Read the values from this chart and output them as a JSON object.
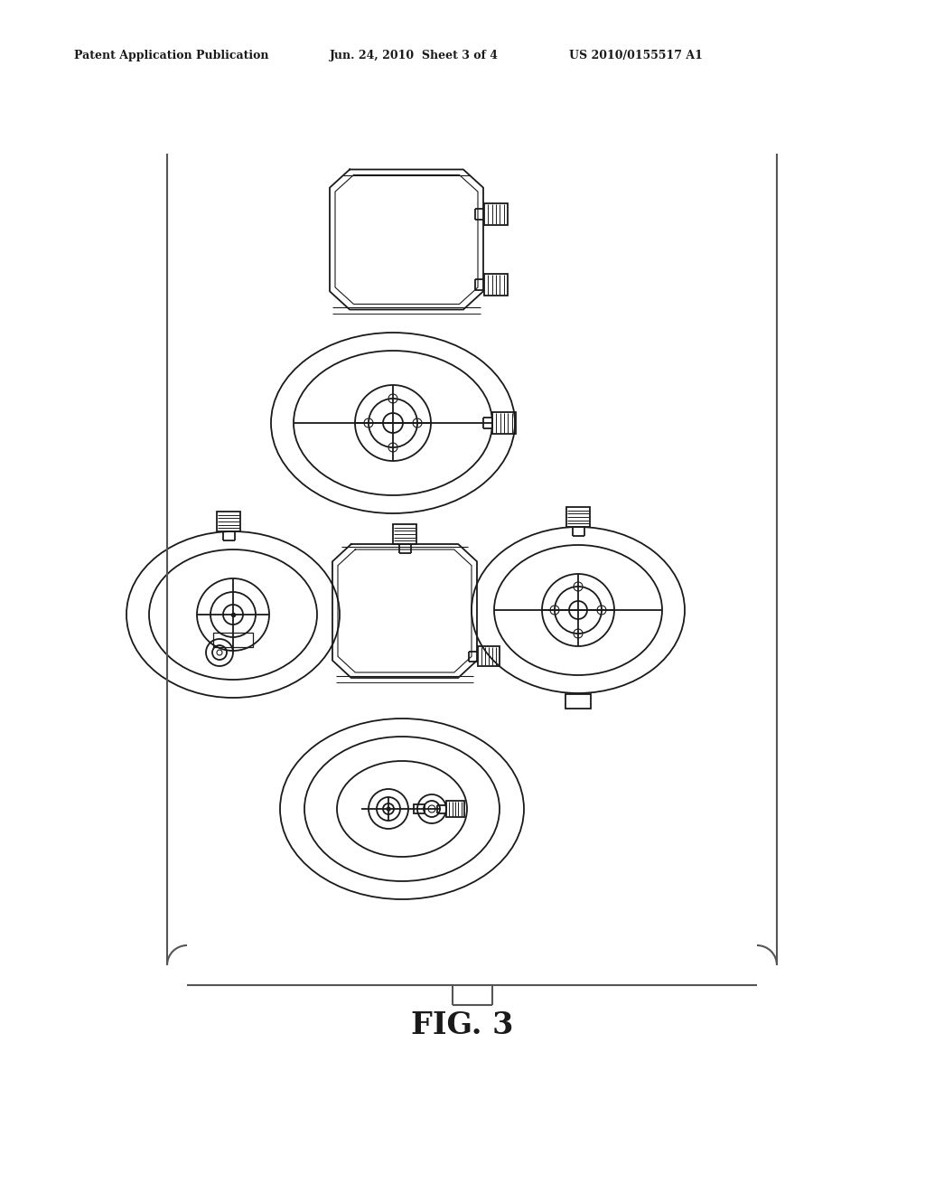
{
  "background_color": "#ffffff",
  "header_left": "Patent Application Publication",
  "header_center": "Jun. 24, 2010  Sheet 3 of 4",
  "header_right": "US 2010/0155517 A1",
  "figure_label": "FIG. 3",
  "line_color": "#1a1a1a",
  "line_width": 1.3,
  "bracket_color": "#555555",
  "fig_width": 10.24,
  "fig_height": 13.2,
  "dpi": 100
}
